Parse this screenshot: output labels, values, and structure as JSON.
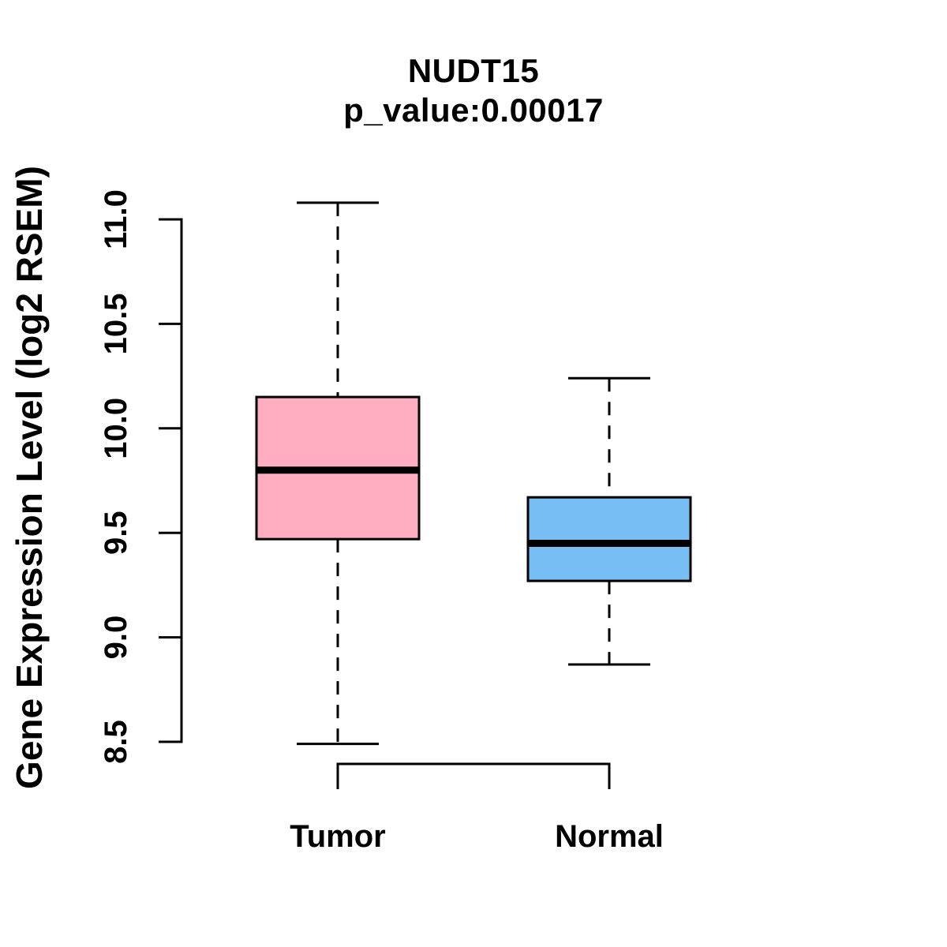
{
  "chart_data": {
    "type": "boxplot",
    "gene": "NUDT15",
    "title": "NUDT15",
    "subtitle": "p_value:0.00017",
    "p_value": 0.00017,
    "ylabel": "Gene Expression Level (log2 RSEM)",
    "ylim": [
      8.5,
      11.0
    ],
    "yticks": [
      8.5,
      9.0,
      9.5,
      10.0,
      10.5,
      11.0
    ],
    "categories": [
      "Tumor",
      "Normal"
    ],
    "series": [
      {
        "name": "Tumor",
        "color": "#FFAEC1",
        "whisker_low": 8.49,
        "q1": 9.47,
        "median": 9.8,
        "q3": 10.15,
        "whisker_high": 11.08
      },
      {
        "name": "Normal",
        "color": "#76BEF3",
        "whisker_low": 8.87,
        "q1": 9.27,
        "median": 9.45,
        "q3": 9.67,
        "whisker_high": 10.24
      }
    ],
    "box_border_color": "#000000",
    "median_line_color": "#000000",
    "whisker_style": "dashed",
    "legend": "none",
    "grid": "off"
  }
}
